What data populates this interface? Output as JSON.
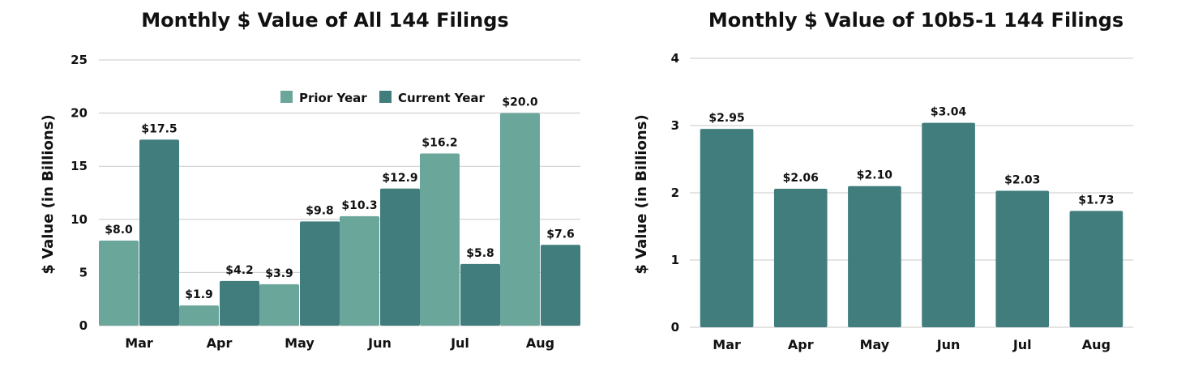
{
  "chart_data": [
    {
      "type": "bar",
      "title": "Monthly $ Value of All 144 Filings",
      "xlabel": "",
      "ylabel": "$ Value (in Billions)",
      "ylim": [
        0,
        25
      ],
      "yticks": [
        0,
        5,
        10,
        15,
        20,
        25
      ],
      "categories": [
        "Mar",
        "Apr",
        "May",
        "Jun",
        "Jul",
        "Aug"
      ],
      "series": [
        {
          "name": "Prior Year",
          "color": "#6aa69a",
          "values": [
            8.0,
            1.9,
            3.9,
            10.3,
            16.2,
            20.0
          ],
          "labels": [
            "$8.0",
            "$1.9",
            "$3.9",
            "$10.3",
            "$16.2",
            "$20.0"
          ]
        },
        {
          "name": "Current Year",
          "color": "#417d7d",
          "values": [
            17.5,
            4.2,
            9.8,
            12.9,
            5.8,
            7.6
          ],
          "labels": [
            "$17.5",
            "$4.2",
            "$9.8",
            "$12.9",
            "$5.8",
            "$7.6"
          ]
        }
      ],
      "grid": true,
      "legend": "top-right"
    },
    {
      "type": "bar",
      "title": "Monthly $ Value of 10b5-1 144 Filings",
      "xlabel": "",
      "ylabel": "$ Value (in Billions)",
      "ylim": [
        0,
        4
      ],
      "yticks": [
        0,
        1,
        2,
        3,
        4
      ],
      "categories": [
        "Mar",
        "Apr",
        "May",
        "Jun",
        "Jul",
        "Aug"
      ],
      "series": [
        {
          "color": "#417d7d",
          "values": [
            2.95,
            2.06,
            2.1,
            3.04,
            2.03,
            1.73
          ],
          "labels": [
            "$2.95",
            "$2.06",
            "$2.10",
            "$3.04",
            "$2.03",
            "$1.73"
          ]
        }
      ],
      "grid": true,
      "legend": "none"
    }
  ]
}
